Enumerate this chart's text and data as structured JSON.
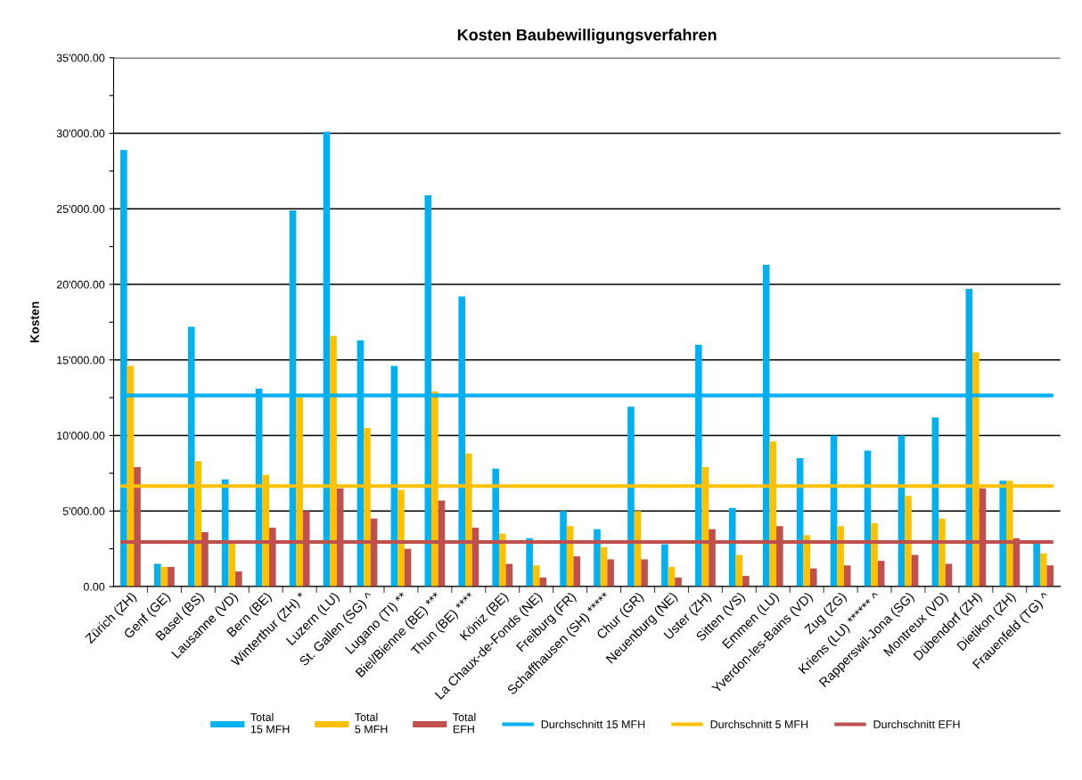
{
  "chart_data": {
    "type": "bar",
    "title": "Kosten Baubewilligungsverfahren",
    "ylabel": "Kosten",
    "categories": [
      "Zürich (ZH)",
      "Genf (GE)",
      "Basel (BS)",
      "Lausanne (VD)",
      "Bern (BE)",
      "Winterthur (ZH) *",
      "Luzern (LU)",
      "St. Gallen (SG) ^",
      "Lugano (TI) **",
      "Biel/Bienne (BE) ***",
      "Thun (BE) ****",
      "Köniz (BE)",
      "La Chaux-de-Fonds (NE)",
      "Freiburg (FR)",
      "Schaffhausen (SH) *****",
      "Chur (GR)",
      "Neuenburg (NE)",
      "Uster (ZH)",
      "Sitten (VS)",
      "Emmen (LU)",
      "Yverdon-les-Bains (VD)",
      "Zug (ZG)",
      "Kriens (LU) ****** ^",
      "Rapperswil-Jona (SG)",
      "Montreux (VD)",
      "Dübendorf (ZH)",
      "Dietikon (ZH)",
      "Frauenfeld (TG) ^"
    ],
    "series": [
      {
        "name": "Total\n15 MFH",
        "color": "#00b0f0",
        "values": [
          28900,
          1500,
          17200,
          7100,
          13100,
          24900,
          30100,
          16300,
          14600,
          25900,
          19200,
          7800,
          3200,
          5000,
          3800,
          11900,
          2800,
          16000,
          5200,
          21300,
          8500,
          10000,
          9000,
          10000,
          11200,
          19700,
          7000,
          2900
        ]
      },
      {
        "name": "Total\n5 MFH",
        "color": "#ffc000",
        "values": [
          14600,
          1300,
          8300,
          2900,
          7400,
          12500,
          16600,
          10500,
          6400,
          12900,
          8800,
          3500,
          1400,
          4000,
          2600,
          5000,
          1300,
          7900,
          2100,
          9600,
          3400,
          4000,
          4200,
          6000,
          4500,
          15500,
          7000,
          2200
        ]
      },
      {
        "name": "Total\nEFH",
        "color": "#c0504d",
        "values": [
          7900,
          1300,
          3600,
          1000,
          3900,
          5000,
          6500,
          4500,
          2500,
          5700,
          3900,
          1500,
          600,
          2000,
          1800,
          1800,
          600,
          3800,
          700,
          4000,
          1200,
          1400,
          1700,
          2100,
          1500,
          6500,
          3200,
          1400
        ]
      }
    ],
    "ref_lines": [
      {
        "axis": "y",
        "value": 12650,
        "label": "Durchschnitt 15 MFH",
        "color": "#00b0f0"
      },
      {
        "axis": "y",
        "value": 6650,
        "label": "Durchschnitt 5 MFH",
        "color": "#ffc000"
      },
      {
        "axis": "y",
        "value": 2950,
        "label": "Durchschnitt EFH",
        "color": "#c0504d"
      }
    ],
    "ylim": [
      0,
      35000
    ],
    "yticks": [
      {
        "value": 0,
        "label": "0.00"
      },
      {
        "value": 2500,
        "label": null
      },
      {
        "value": 5000,
        "label": "5'000.00"
      },
      {
        "value": 7500,
        "label": null
      },
      {
        "value": 10000,
        "label": "10'000.00"
      },
      {
        "value": 12500,
        "label": null
      },
      {
        "value": 15000,
        "label": "15'000.00"
      },
      {
        "value": 17500,
        "label": null
      },
      {
        "value": 20000,
        "label": "20'000.00"
      },
      {
        "value": 22500,
        "label": null
      },
      {
        "value": 25000,
        "label": "25'000.00"
      },
      {
        "value": 27500,
        "label": null
      },
      {
        "value": 30000,
        "label": "30'000.00"
      },
      {
        "value": 32500,
        "label": null
      },
      {
        "value": 35000,
        "label": "35'000.00"
      }
    ],
    "grid": "y",
    "legend": "bottom"
  }
}
